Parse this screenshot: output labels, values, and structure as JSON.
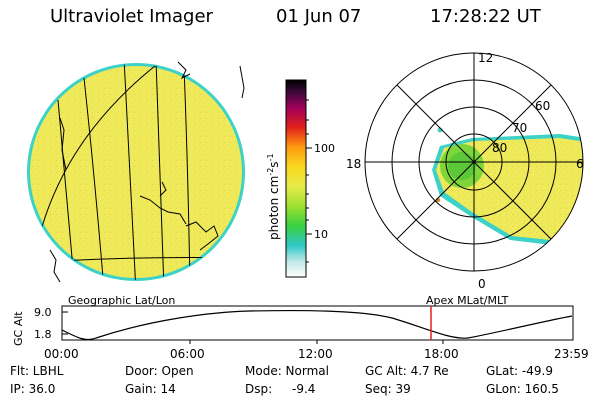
{
  "header": {
    "instrument": "Ultraviolet Imager",
    "date": "01 Jun 07",
    "time": "17:28:22 UT"
  },
  "colors": {
    "aurora_fill": "#e4e84a",
    "background_fill": "#f2e86a",
    "cyan_rim": "#3cd2c8",
    "green_core": "#7ed63a"
  },
  "colorbar": {
    "label": "photon cm",
    "exp1": "-2",
    "mid": "s",
    "exp2": "-1",
    "tick_100": "100",
    "tick_10": "10"
  },
  "geo_panel": {
    "caption": "Geographic Lat/Lon"
  },
  "polar_panel": {
    "caption": "Apex MLat/MLT",
    "mlt_labels": {
      "top": "12",
      "bottom": "0",
      "left": "18",
      "right": "6"
    },
    "lat_labels": [
      "60",
      "70",
      "80"
    ]
  },
  "altitude_plot": {
    "ylabel": "GC Alt",
    "ytick_top": "9.0",
    "ytick_bottom": "1.8",
    "xticks": [
      "00:00",
      "06:00",
      "12:00",
      "18:00",
      "23:59"
    ],
    "marker_color": "#e02020"
  },
  "info": {
    "flt": "Flt: LBHL",
    "ip": "IP: 36.0",
    "door": "Door: Open",
    "gain": "Gain: 14",
    "mode": "Mode: Normal",
    "dsp_label": "Dsp:",
    "dsp_value": "-9.4",
    "gc_alt": "GC Alt: 4.7 Re",
    "seq": "Seq: 39",
    "glat": "GLat: -49.9",
    "glon": "GLon: 160.5"
  }
}
